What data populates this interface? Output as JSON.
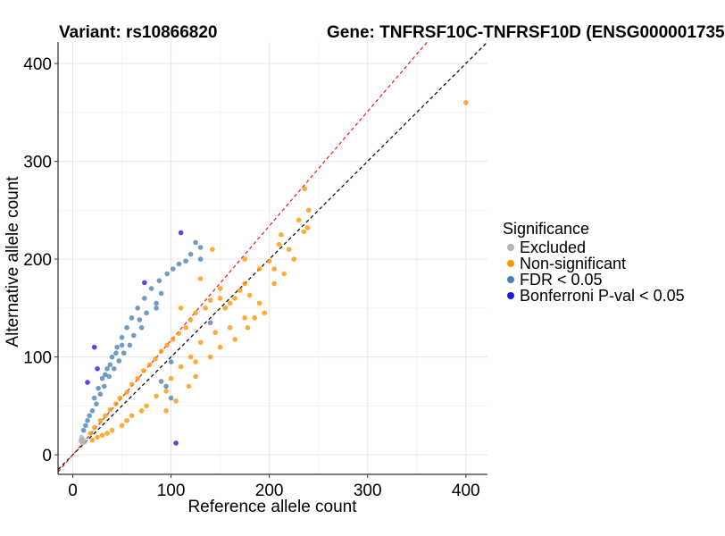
{
  "chart_data": {
    "type": "scatter",
    "title_left": "Variant: rs10866820",
    "title_right": "Gene: TNFRSF10C-TNFRSF10D (ENSG000001735",
    "xlabel": "Reference allele count",
    "ylabel": "Alternative allele count",
    "xlim": [
      -15,
      422
    ],
    "ylim": [
      -20,
      422
    ],
    "xticks": [
      0,
      100,
      200,
      300,
      400
    ],
    "yticks": [
      0,
      100,
      200,
      300,
      400
    ],
    "grid": true,
    "reference_lines": [
      {
        "name": "identity",
        "slope": 1.0,
        "color": "#000000"
      },
      {
        "name": "expected-ratio",
        "slope": 1.17,
        "color": "#e41a1c"
      }
    ],
    "legend": {
      "title": "Significance",
      "position": "right",
      "items": [
        {
          "label": "Excluded",
          "color": "#b3b3b3"
        },
        {
          "label": "Non-significant",
          "color": "#ff9400"
        },
        {
          "label": "FDR < 0.05",
          "color": "#4a7db1"
        },
        {
          "label": "Bonferroni P-val < 0.05",
          "color": "#1a1ae6"
        }
      ]
    },
    "series": [
      {
        "name": "Excluded",
        "color": "#b3b3b3",
        "points": [
          [
            8,
            14
          ],
          [
            9,
            16
          ],
          [
            10,
            12
          ],
          [
            11,
            15
          ],
          [
            9,
            18
          ],
          [
            12,
            13
          ]
        ]
      },
      {
        "name": "Non-significant",
        "color": "#ff9400",
        "points": [
          [
            400,
            360
          ],
          [
            236,
            272
          ],
          [
            240,
            250
          ],
          [
            239,
            232
          ],
          [
            235,
            228
          ],
          [
            212,
            225
          ],
          [
            210,
            215
          ],
          [
            175,
            200
          ],
          [
            220,
            210
          ],
          [
            205,
            190
          ],
          [
            160,
            155
          ],
          [
            200,
            198
          ],
          [
            190,
            190
          ],
          [
            175,
            175
          ],
          [
            180,
            163
          ],
          [
            142,
            210
          ],
          [
            230,
            240
          ],
          [
            110,
            150
          ],
          [
            150,
            170
          ],
          [
            130,
            180
          ],
          [
            195,
            145
          ],
          [
            175,
            140
          ],
          [
            160,
            130
          ],
          [
            145,
            125
          ],
          [
            130,
            115
          ],
          [
            120,
            100
          ],
          [
            110,
            90
          ],
          [
            100,
            78
          ],
          [
            95,
            65
          ],
          [
            85,
            60
          ],
          [
            75,
            50
          ],
          [
            70,
            45
          ],
          [
            60,
            40
          ],
          [
            55,
            35
          ],
          [
            50,
            30
          ],
          [
            40,
            25
          ],
          [
            35,
            22
          ],
          [
            30,
            20
          ],
          [
            25,
            18
          ],
          [
            20,
            15
          ],
          [
            18,
            22
          ],
          [
            22,
            28
          ],
          [
            28,
            35
          ],
          [
            33,
            40
          ],
          [
            38,
            46
          ],
          [
            44,
            52
          ],
          [
            48,
            58
          ],
          [
            55,
            64
          ],
          [
            60,
            72
          ],
          [
            66,
            78
          ],
          [
            72,
            86
          ],
          [
            78,
            92
          ],
          [
            84,
            98
          ],
          [
            90,
            106
          ],
          [
            96,
            112
          ],
          [
            102,
            118
          ],
          [
            108,
            124
          ],
          [
            115,
            130
          ],
          [
            120,
            138
          ],
          [
            125,
            145
          ],
          [
            135,
            150
          ],
          [
            140,
            158
          ],
          [
            150,
            160
          ],
          [
            155,
            150
          ],
          [
            165,
            160
          ],
          [
            170,
            168
          ],
          [
            95,
            45
          ],
          [
            105,
            55
          ],
          [
            118,
            70
          ],
          [
            125,
            80
          ],
          [
            140,
            100
          ],
          [
            150,
            110
          ],
          [
            165,
            118
          ],
          [
            178,
            130
          ],
          [
            185,
            140
          ],
          [
            190,
            155
          ],
          [
            205,
            175
          ],
          [
            215,
            185
          ],
          [
            225,
            200
          ],
          [
            125,
            95
          ]
        ]
      },
      {
        "name": "FDR < 0.05",
        "color": "#4a7db1",
        "points": [
          [
            125,
            217
          ],
          [
            130,
            212
          ],
          [
            120,
            205
          ],
          [
            115,
            198
          ],
          [
            108,
            195
          ],
          [
            102,
            190
          ],
          [
            96,
            185
          ],
          [
            88,
            178
          ],
          [
            80,
            170
          ],
          [
            73,
            160
          ],
          [
            66,
            150
          ],
          [
            60,
            140
          ],
          [
            55,
            130
          ],
          [
            50,
            120
          ],
          [
            45,
            110
          ],
          [
            40,
            100
          ],
          [
            35,
            88
          ],
          [
            30,
            78
          ],
          [
            26,
            68
          ],
          [
            22,
            58
          ],
          [
            90,
            165
          ],
          [
            85,
            155
          ],
          [
            70,
            130
          ],
          [
            62,
            122
          ],
          [
            58,
            112
          ],
          [
            52,
            104
          ],
          [
            47,
            96
          ],
          [
            42,
            88
          ],
          [
            37,
            80
          ],
          [
            32,
            70
          ],
          [
            28,
            62
          ],
          [
            24,
            52
          ],
          [
            20,
            45
          ],
          [
            17,
            40
          ],
          [
            15,
            35
          ],
          [
            13,
            30
          ],
          [
            11,
            25
          ],
          [
            140,
            135
          ],
          [
            85,
            150
          ],
          [
            90,
            75
          ],
          [
            100,
            58
          ],
          [
            95,
            70
          ],
          [
            100,
            95
          ],
          [
            130,
            200
          ],
          [
            75,
            145
          ],
          [
            68,
            138
          ],
          [
            50,
            112
          ],
          [
            44,
            104
          ],
          [
            38,
            92
          ],
          [
            33,
            82
          ]
        ]
      },
      {
        "name": "Bonferroni P-val < 0.05",
        "color": "#1a1ae6",
        "points": [
          [
            110,
            227
          ],
          [
            73,
            176
          ],
          [
            22,
            110
          ],
          [
            25,
            88
          ],
          [
            15,
            74
          ],
          [
            105,
            12
          ]
        ]
      }
    ]
  }
}
